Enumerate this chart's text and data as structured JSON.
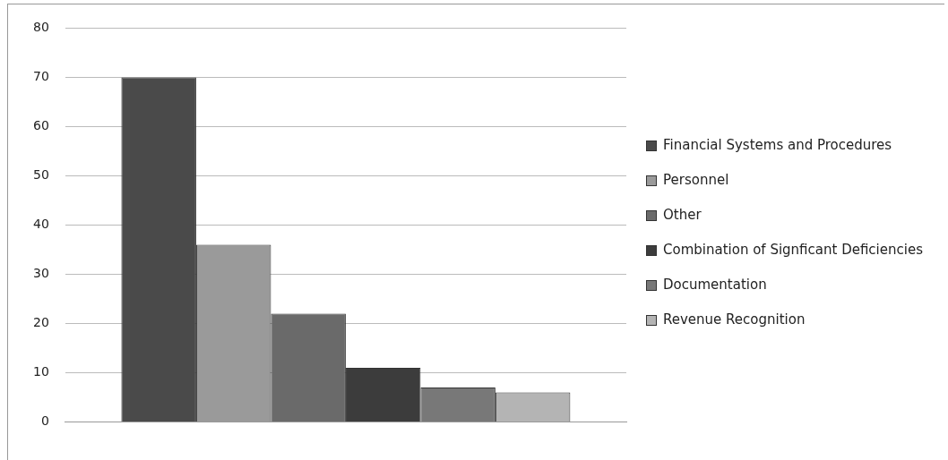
{
  "chart_data": {
    "type": "bar",
    "categories": [
      null
    ],
    "series": [
      {
        "name": "Financial Systems and Procedures",
        "color": "#4a4a4a",
        "values": [
          70
        ]
      },
      {
        "name": "Personnel",
        "color": "#9a9a9a",
        "values": [
          36
        ]
      },
      {
        "name": "Other",
        "color": "#6a6a6a",
        "values": [
          22
        ]
      },
      {
        "name": "Combination of Signficant Deficiencies",
        "color": "#3c3c3c",
        "values": [
          11
        ]
      },
      {
        "name": "Documentation",
        "color": "#787878",
        "values": [
          7
        ]
      },
      {
        "name": "Revenue Recognition",
        "color": "#b4b4b4",
        "values": [
          6
        ]
      }
    ],
    "ylim": [
      0,
      80
    ],
    "yticks": [
      0,
      10,
      20,
      30,
      40,
      50,
      60,
      70,
      80
    ],
    "grid": "y",
    "legend": "right"
  }
}
